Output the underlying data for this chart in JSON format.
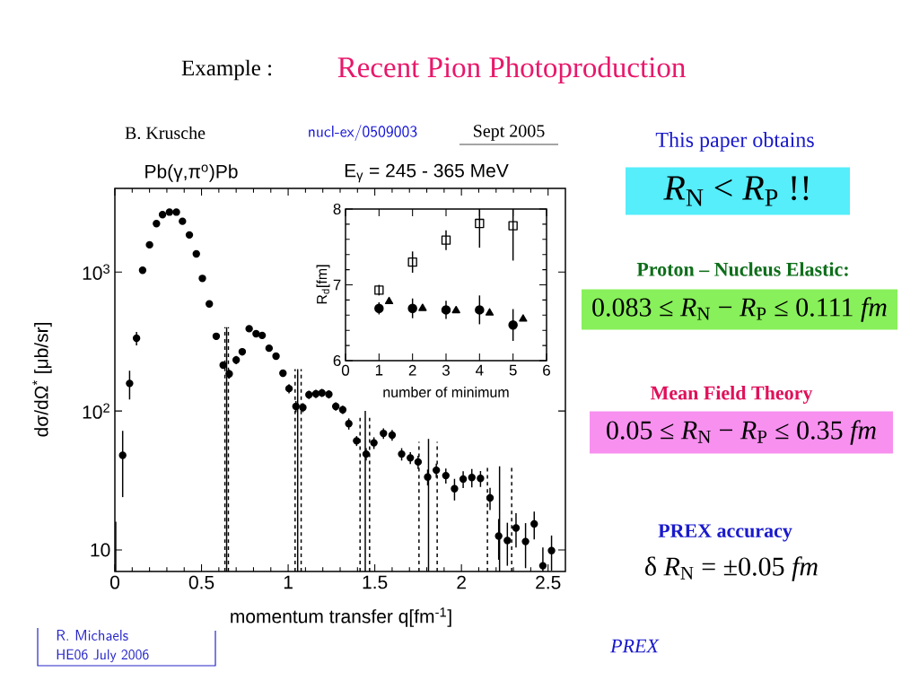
{
  "chart_data": [
    {
      "type": "scatter",
      "title": "Pb(γ,π$^{o}$)Pb",
      "subtitle": "E$_{γ}$ = 245 - 365 MeV",
      "xlabel": "momentum transfer q[fm$^{-1}$]",
      "ylabel": "dσ/dΩ$^{*}$ [μb/sr]",
      "xlim": [
        0,
        2.6
      ],
      "xticks": [
        0,
        0.5,
        1,
        1.5,
        2,
        2.5
      ],
      "ylim": [
        7,
        4000
      ],
      "yticks": [
        {
          "value": 10,
          "label": "10"
        },
        {
          "value": 100,
          "label": "10$^{2}$"
        },
        {
          "value": 1000,
          "label": "10$^{3}$"
        }
      ],
      "log": "y",
      "series": [
        {
          "type": "scatter",
          "color": "#000000",
          "marker": "circle",
          "x": [
            0.045,
            0.085,
            0.125,
            0.16,
            0.2,
            0.24,
            0.275,
            0.315,
            0.355,
            0.39,
            0.43,
            0.47,
            0.505,
            0.545,
            0.585,
            0.625,
            0.66,
            0.7,
            0.735,
            0.775,
            0.815,
            0.85,
            0.89,
            0.93,
            0.97,
            1.005,
            1.045,
            1.085,
            1.12,
            1.16,
            1.195,
            1.235,
            1.275,
            1.315,
            1.35,
            1.395,
            1.45,
            1.495,
            1.55,
            1.6,
            1.655,
            1.705,
            1.75,
            1.805,
            1.855,
            1.91,
            1.96,
            2.01,
            2.06,
            2.11,
            2.165,
            2.215,
            2.265,
            2.315,
            2.37,
            2.42,
            2.47,
            2.52
          ],
          "values": [
            48,
            158,
            334,
            1030,
            1570,
            2230,
            2590,
            2700,
            2700,
            2320,
            1850,
            1350,
            900,
            590,
            345,
            214,
            185,
            233,
            267,
            391,
            360,
            350,
            283,
            248,
            187,
            145,
            108,
            106,
            131,
            133,
            135,
            132,
            108,
            102,
            81,
            61,
            49,
            59,
            69,
            67,
            49,
            46,
            43,
            33.5,
            37.5,
            34.3,
            27.6,
            32.4,
            33.2,
            32.7,
            23.7,
            12.6,
            11.7,
            14.4,
            11.5,
            15.4,
            7.7,
            9.9
          ],
          "errors": [
            24,
            37,
            37,
            null,
            null,
            null,
            null,
            null,
            null,
            null,
            null,
            null,
            null,
            null,
            17,
            12,
            14,
            16,
            16,
            null,
            null,
            null,
            15,
            14,
            11,
            11,
            10,
            8,
            9,
            9,
            9,
            9,
            7.5,
            7,
            7.5,
            5,
            5,
            5.7,
            6,
            6,
            5,
            4.5,
            4.7,
            4.4,
            4.4,
            4.3,
            4.9,
            4.5,
            5,
            4.3,
            4.3,
            4.1,
            4,
            4,
            4.1,
            3.5,
            [
              7,
              10.4
            ],
            2.8
          ]
        },
        {
          "type": "line",
          "color": "#000000",
          "line_style": "solid",
          "marker": "none",
          "x": [
            0.005,
            0.005
          ],
          "values": [
            7,
            16
          ]
        },
        {
          "type": "line",
          "color": "#000000",
          "line_style": "dashed",
          "marker": "none",
          "x": [
            0.635,
            0.635
          ],
          "values": [
            7,
            400
          ]
        },
        {
          "type": "line",
          "color": "#000000",
          "line_style": "solid",
          "marker": "none",
          "x": [
            0.645,
            0.645
          ],
          "values": [
            7,
            400
          ]
        },
        {
          "type": "line",
          "color": "#000000",
          "line_style": "dashed",
          "marker": "none",
          "x": [
            0.655,
            0.655
          ],
          "values": [
            7,
            400
          ]
        },
        {
          "type": "line",
          "color": "#000000",
          "line_style": "dashed",
          "marker": "none",
          "x": [
            1.04,
            1.04
          ],
          "values": [
            7,
            200
          ]
        },
        {
          "type": "line",
          "color": "#000000",
          "line_style": "solid",
          "marker": "none",
          "x": [
            1.055,
            1.055
          ],
          "values": [
            7,
            200
          ]
        },
        {
          "type": "line",
          "color": "#000000",
          "line_style": "dashed",
          "marker": "none",
          "x": [
            1.075,
            1.075
          ],
          "values": [
            7,
            200
          ]
        },
        {
          "type": "line",
          "color": "#000000",
          "line_style": "dashed",
          "marker": "none",
          "x": [
            1.415,
            1.415
          ],
          "values": [
            7,
            92
          ]
        },
        {
          "type": "line",
          "color": "#000000",
          "line_style": "solid",
          "marker": "none",
          "x": [
            1.445,
            1.445
          ],
          "values": [
            7,
            100
          ]
        },
        {
          "type": "line",
          "color": "#000000",
          "line_style": "dashed",
          "marker": "none",
          "x": [
            1.47,
            1.47
          ],
          "values": [
            7,
            92
          ]
        },
        {
          "type": "line",
          "color": "#000000",
          "line_style": "dashed",
          "marker": "none",
          "x": [
            1.755,
            1.755
          ],
          "values": [
            7,
            60
          ]
        },
        {
          "type": "line",
          "color": "#000000",
          "line_style": "solid",
          "marker": "none",
          "x": [
            1.81,
            1.81
          ],
          "values": [
            7,
            63
          ]
        },
        {
          "type": "line",
          "color": "#000000",
          "line_style": "dashed",
          "marker": "none",
          "x": [
            1.86,
            1.86
          ],
          "values": [
            7,
            60
          ]
        },
        {
          "type": "line",
          "color": "#000000",
          "line_style": "dashed",
          "marker": "none",
          "x": [
            2.15,
            2.15
          ],
          "values": [
            7,
            40
          ]
        },
        {
          "type": "line",
          "color": "#000000",
          "line_style": "solid",
          "marker": "none",
          "x": [
            2.22,
            2.22
          ],
          "values": [
            7,
            40
          ]
        },
        {
          "type": "line",
          "color": "#000000",
          "line_style": "dashed",
          "marker": "none",
          "x": [
            2.29,
            2.29
          ],
          "values": [
            7,
            40
          ]
        }
      ],
      "annotations": [
        "Example :",
        "Recent Pion Photoproduction",
        "B. Krusche",
        "nucl-ex/0509003",
        "Sept 2005",
        "This paper obtains",
        "*R*$_{N}$ < *R*$_{P}$ !!",
        "Proton – Nucleus Elastic:",
        "0.083 ≤ *R*$_{N}$ − *R*$_{P}$ ≤ 0.111 *fm*",
        "Mean Field Theory",
        "0.05 ≤ *R*$_{N}$ − *R*$_{P}$ ≤ 0.35 *fm*",
        "PREX accuracy",
        "δ *R*$_{N}$ = ±0.05 *fm*",
        "R. Michaels",
        "HE06 July 2006",
        "PREX"
      ]
    },
    {
      "type": "scatter",
      "xlabel": "number of minimum",
      "ylabel": "R$_{d}$[fm]",
      "xlim": [
        0,
        6
      ],
      "xticks": [
        0,
        1,
        2,
        3,
        4,
        5,
        6
      ],
      "ylim": [
        6,
        8
      ],
      "yticks": [
        6,
        7,
        8
      ],
      "series": [
        {
          "color": "#000000",
          "marker": "square",
          "x": [
            1,
            2,
            3,
            4,
            5
          ],
          "values": [
            6.93,
            7.3,
            7.59,
            7.81,
            7.78
          ],
          "errors": [
            0.07,
            0.14,
            0.13,
            [
              7.49,
              8
            ],
            [
              7.32,
              8
            ]
          ]
        },
        {
          "color": "#000000",
          "marker": "circle",
          "x": [
            1,
            2,
            3,
            4,
            5
          ],
          "values": [
            6.69,
            6.69,
            6.67,
            6.67,
            6.47
          ],
          "errors": [
            0.08,
            0.13,
            0.12,
            0.19,
            0.21
          ]
        },
        {
          "color": "#000000",
          "marker": "triangle",
          "x": [
            1.3,
            2.3,
            3.3,
            4.3,
            5.3
          ],
          "values": [
            6.78,
            6.69,
            6.66,
            6.63,
            6.55
          ]
        }
      ]
    }
  ]
}
